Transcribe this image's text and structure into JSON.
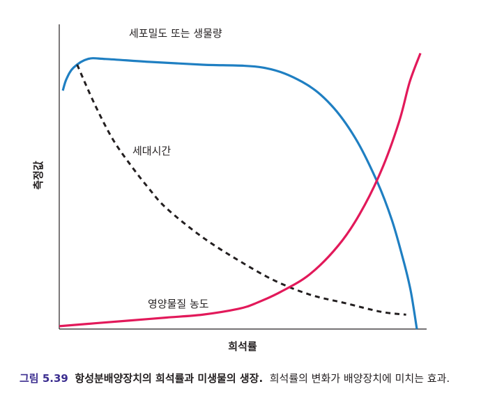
{
  "chart_data": {
    "type": "line",
    "title": "",
    "xlabel": "희석률",
    "ylabel": "측정값",
    "xticks": [],
    "yticks": [],
    "grid": false,
    "legend": "none (curves labeled directly)",
    "xlim": [
      0,
      1
    ],
    "ylim": [
      0,
      1
    ],
    "series": [
      {
        "name": "세포밀도 또는 생물량",
        "color": "#1f7fc2",
        "style": "solid",
        "x": [
          0.01,
          0.02,
          0.04,
          0.08,
          0.13,
          0.25,
          0.4,
          0.57,
          0.68,
          0.76,
          0.83,
          0.89,
          0.93,
          0.96,
          0.98,
          0.99,
          1.0
        ],
        "y": [
          0.83,
          0.87,
          0.91,
          0.94,
          0.94,
          0.93,
          0.92,
          0.91,
          0.86,
          0.78,
          0.66,
          0.51,
          0.38,
          0.25,
          0.15,
          0.08,
          0.0
        ]
      },
      {
        "name": "세대시간",
        "color": "#231f20",
        "style": "dashed",
        "x": [
          0.05,
          0.1,
          0.15,
          0.2,
          0.25,
          0.3,
          0.4,
          0.5,
          0.6,
          0.7,
          0.8,
          0.9,
          0.97
        ],
        "y": [
          0.92,
          0.78,
          0.66,
          0.57,
          0.49,
          0.42,
          0.32,
          0.24,
          0.17,
          0.12,
          0.09,
          0.06,
          0.05
        ]
      },
      {
        "name": "영양물질 농도",
        "color": "#e2195a",
        "style": "solid",
        "x": [
          0.0,
          0.1,
          0.2,
          0.3,
          0.4,
          0.5,
          0.55,
          0.62,
          0.7,
          0.78,
          0.84,
          0.9,
          0.95,
          0.98,
          1.01
        ],
        "y": [
          0.01,
          0.02,
          0.03,
          0.04,
          0.05,
          0.07,
          0.09,
          0.13,
          0.19,
          0.29,
          0.4,
          0.55,
          0.72,
          0.86,
          0.96
        ]
      }
    ]
  },
  "caption": {
    "figure_number": "그림 5.39",
    "title": "항성분배양장치의 희석률과 미생물의 생장.",
    "text": "희석률의 변화가 배양장치에 미치는 효과."
  }
}
